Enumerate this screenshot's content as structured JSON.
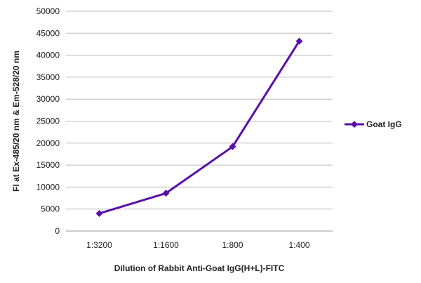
{
  "chart_data": {
    "type": "line",
    "title": "",
    "xlabel": "Dilution of Rabbit Anti-Goat IgG(H+L)-FITC",
    "ylabel": "FI at Ex-485/20 nm & Em-528/20 nm",
    "categories": [
      "1:3200",
      "1:1600",
      "1:800",
      "1:400"
    ],
    "series": [
      {
        "name": "Goat IgG",
        "values": [
          4000,
          8600,
          19200,
          43200
        ],
        "color": "#5b0fa8"
      }
    ],
    "ylim": [
      0,
      50000
    ],
    "yticks": [
      0,
      5000,
      10000,
      15000,
      20000,
      25000,
      30000,
      35000,
      40000,
      45000,
      50000
    ],
    "grid": true,
    "legend": "right"
  }
}
